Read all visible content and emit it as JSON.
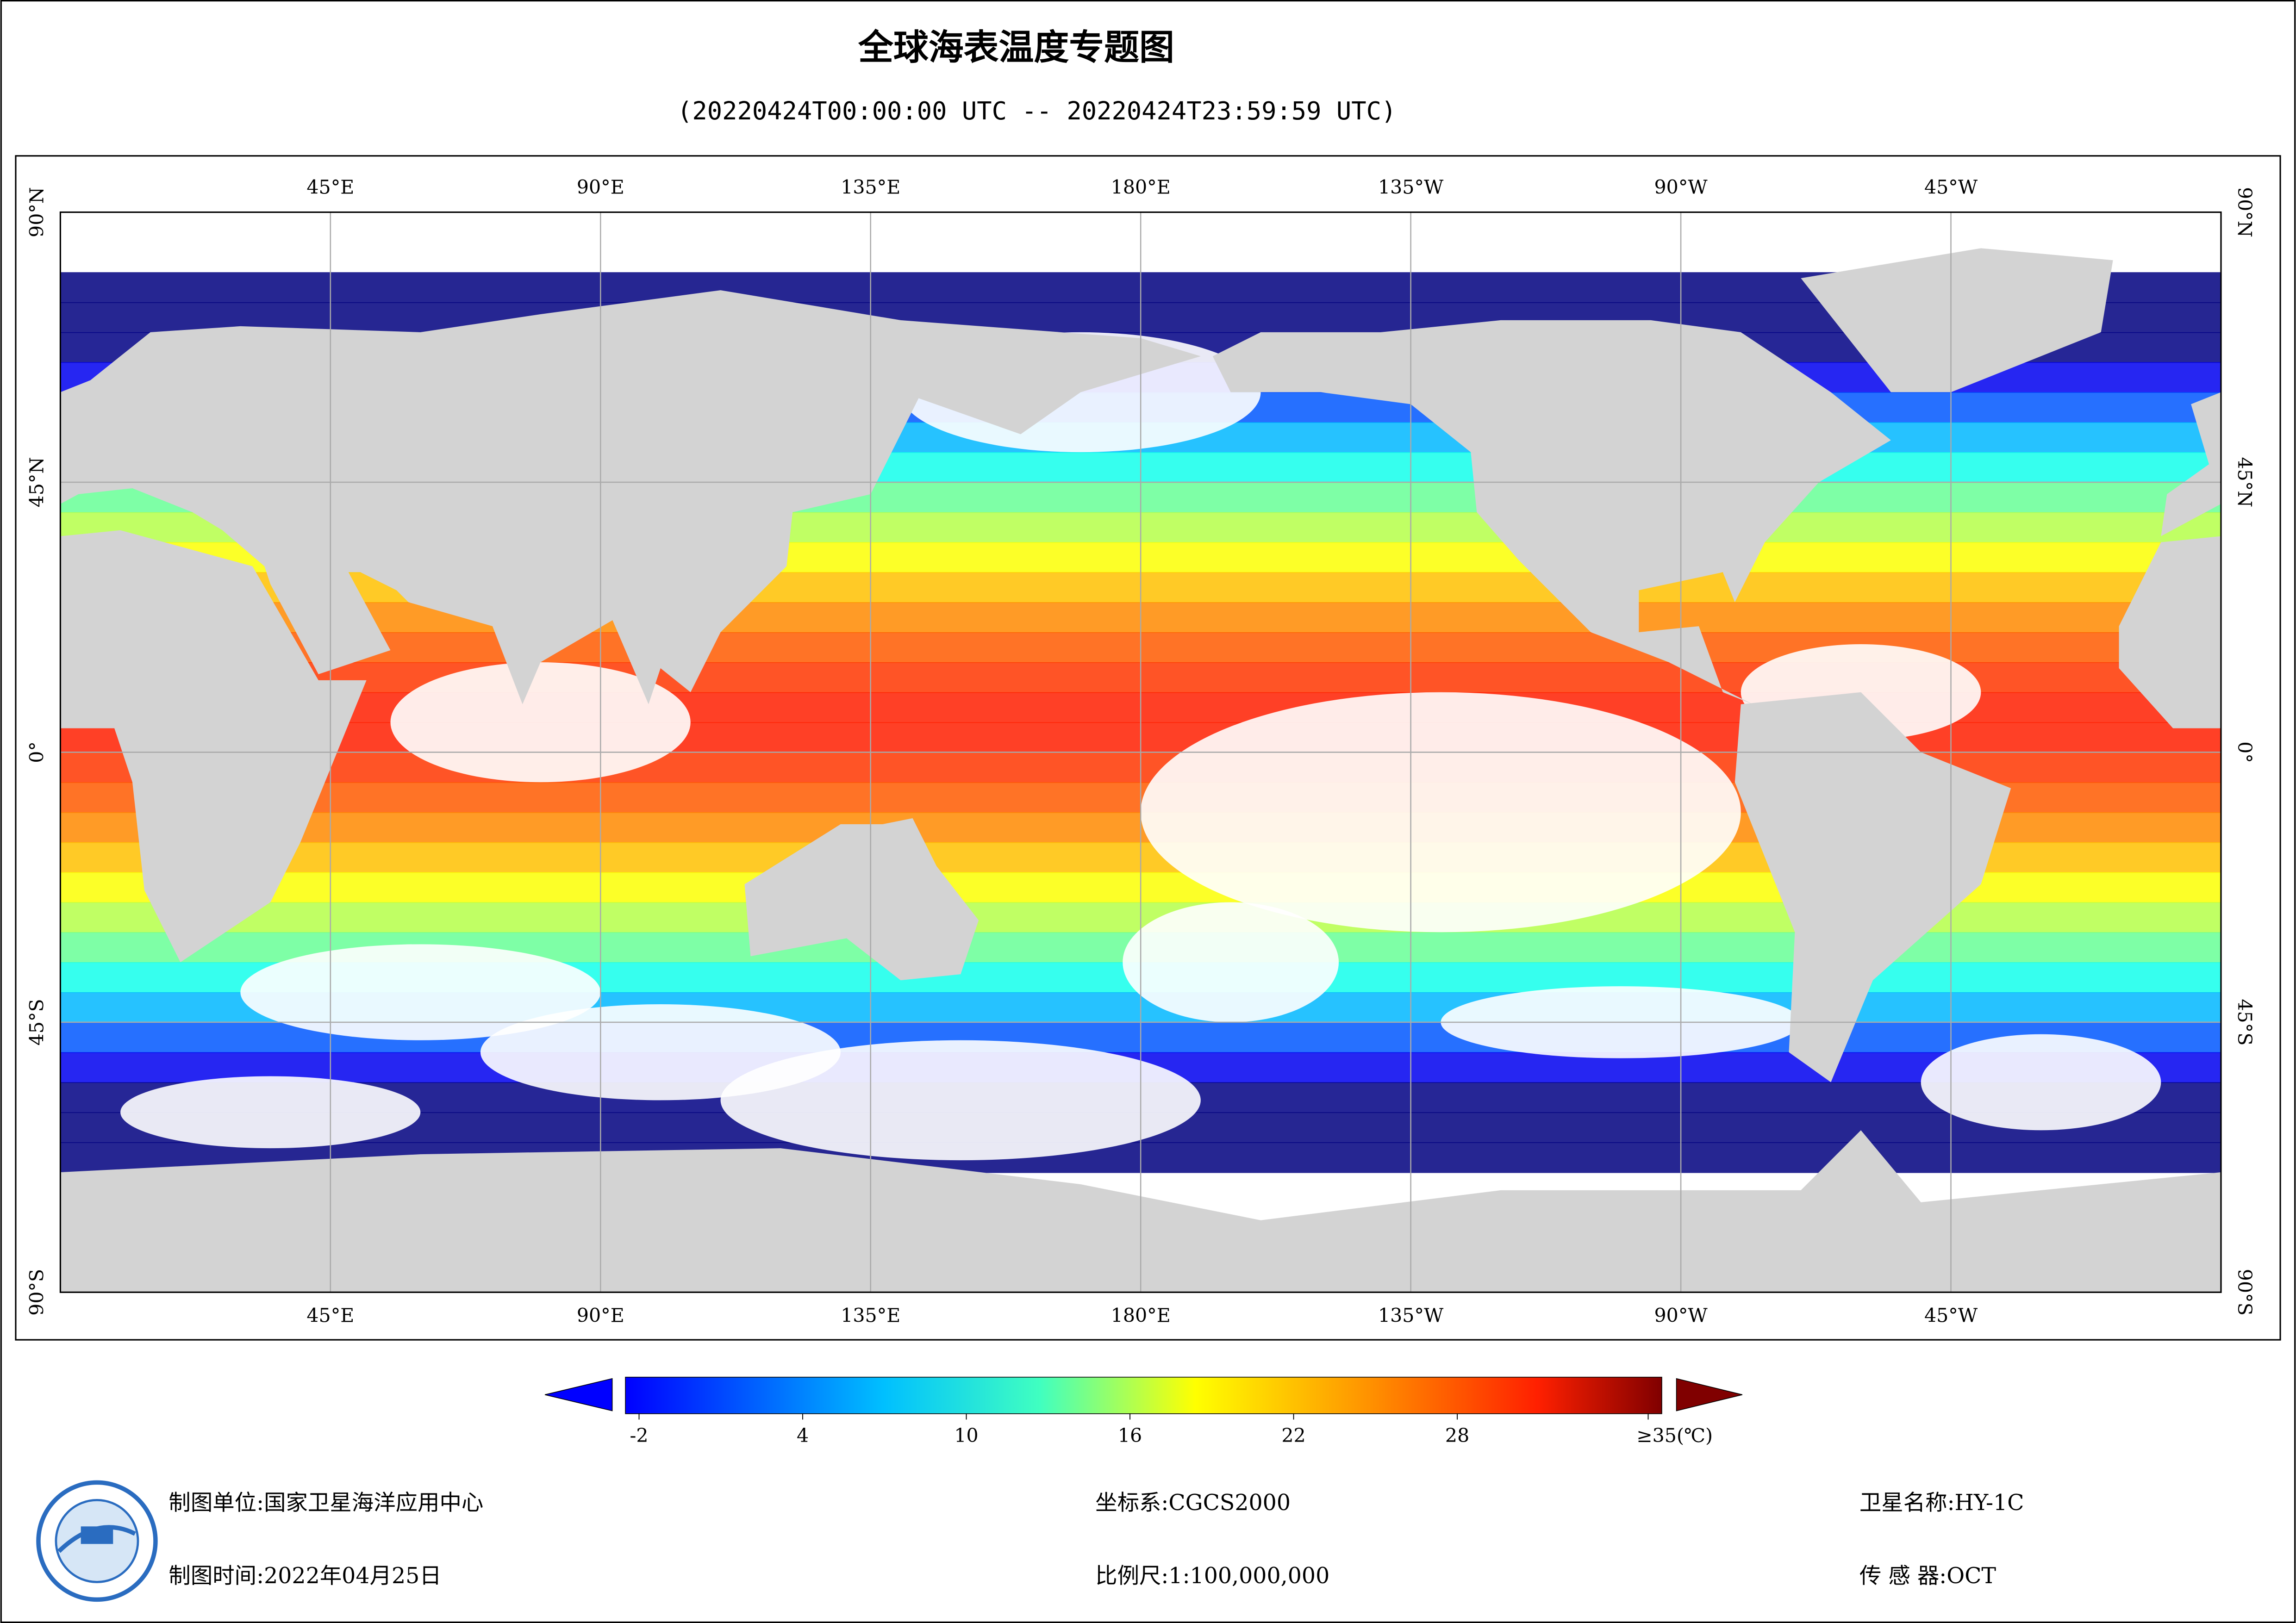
{
  "header": {
    "title": "全球海表温度专题图",
    "subtitle": "(20220424T00:00:00 UTC -- 20220424T23:59:59 UTC)"
  },
  "map": {
    "lon_labels": [
      "45°E",
      "90°E",
      "135°E",
      "180°E",
      "135°W",
      "90°W",
      "45°W"
    ],
    "lat_labels": [
      "90°N",
      "45°N",
      "0°",
      "45°S",
      "90°S"
    ]
  },
  "colorbar": {
    "range": [
      -2.5,
      35.5
    ],
    "ticks": [
      -2,
      4,
      10,
      16,
      22,
      28,
      {
        "value": 35,
        "label": "≥35(℃)"
      }
    ]
  },
  "footer": {
    "unit": "制图单位:国家卫星海洋应用中心",
    "time": "制图时间:2022年04月25日",
    "crs": "坐标系:CGCS2000",
    "scale": "比例尺:1:100,000,000",
    "satellite": "卫星名称:HY-1C",
    "sensor": "传 感 器:OCT"
  }
}
